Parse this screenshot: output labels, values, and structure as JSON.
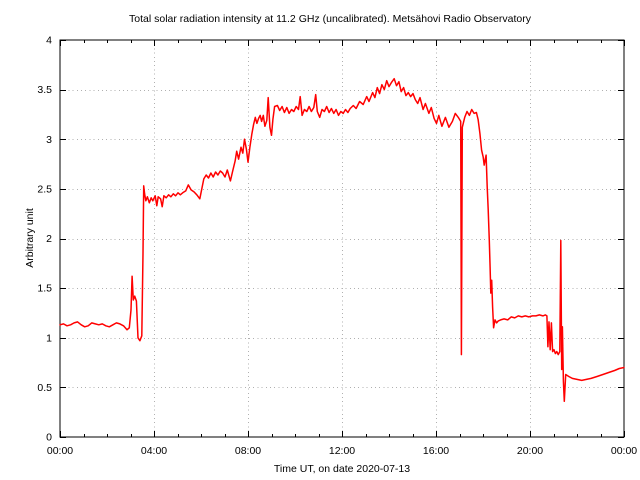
{
  "chart_data": {
    "type": "line",
    "title": "Total solar radiation intensity at 11.2 GHz (uncalibrated). Metsähovi Radio Observatory",
    "xlabel": "Time UT, on date 2020-07-13",
    "ylabel": "Arbitrary unit",
    "xlim": [
      0,
      24
    ],
    "ylim": [
      0,
      4
    ],
    "grid": true,
    "legend_position": "none",
    "frame_color": "#000000",
    "grid_color": "#b0b0b0",
    "x_ticks": [
      {
        "t": 0,
        "label": "00:00"
      },
      {
        "t": 4,
        "label": "04:00"
      },
      {
        "t": 8,
        "label": "08:00"
      },
      {
        "t": 12,
        "label": "12:00"
      },
      {
        "t": 16,
        "label": "16:00"
      },
      {
        "t": 20,
        "label": "20:00"
      },
      {
        "t": 24,
        "label": "00:00"
      }
    ],
    "minor_x_tick_every_hours": 1,
    "y_ticks": [
      {
        "v": 0,
        "label": "0"
      },
      {
        "v": 0.5,
        "label": "0.5"
      },
      {
        "v": 1,
        "label": "1"
      },
      {
        "v": 1.5,
        "label": "1.5"
      },
      {
        "v": 2,
        "label": "2"
      },
      {
        "v": 2.5,
        "label": "2.5"
      },
      {
        "v": 3,
        "label": "3"
      },
      {
        "v": 3.5,
        "label": "3.5"
      },
      {
        "v": 4,
        "label": "4"
      }
    ],
    "series": [
      {
        "name": "total solar radiation intensity",
        "color": "#ff0000",
        "points": [
          [
            0.0,
            1.13
          ],
          [
            0.15,
            1.14
          ],
          [
            0.3,
            1.12
          ],
          [
            0.45,
            1.13
          ],
          [
            0.6,
            1.15
          ],
          [
            0.75,
            1.16
          ],
          [
            0.9,
            1.13
          ],
          [
            1.05,
            1.11
          ],
          [
            1.2,
            1.12
          ],
          [
            1.35,
            1.15
          ],
          [
            1.5,
            1.14
          ],
          [
            1.65,
            1.13
          ],
          [
            1.8,
            1.14
          ],
          [
            1.95,
            1.12
          ],
          [
            2.1,
            1.11
          ],
          [
            2.25,
            1.13
          ],
          [
            2.4,
            1.15
          ],
          [
            2.55,
            1.14
          ],
          [
            2.7,
            1.12
          ],
          [
            2.85,
            1.08
          ],
          [
            2.95,
            1.1
          ],
          [
            3.02,
            1.28
          ],
          [
            3.07,
            1.62
          ],
          [
            3.12,
            1.38
          ],
          [
            3.18,
            1.42
          ],
          [
            3.25,
            1.37
          ],
          [
            3.32,
            1.0
          ],
          [
            3.4,
            0.97
          ],
          [
            3.48,
            1.02
          ],
          [
            3.53,
            1.85
          ],
          [
            3.56,
            2.53
          ],
          [
            3.6,
            2.45
          ],
          [
            3.65,
            2.38
          ],
          [
            3.72,
            2.42
          ],
          [
            3.8,
            2.36
          ],
          [
            3.88,
            2.41
          ],
          [
            3.95,
            2.38
          ],
          [
            4.05,
            2.43
          ],
          [
            4.12,
            2.33
          ],
          [
            4.18,
            2.42
          ],
          [
            4.28,
            2.4
          ],
          [
            4.35,
            2.32
          ],
          [
            4.42,
            2.43
          ],
          [
            4.52,
            2.41
          ],
          [
            4.62,
            2.44
          ],
          [
            4.72,
            2.42
          ],
          [
            4.82,
            2.45
          ],
          [
            4.92,
            2.43
          ],
          [
            5.02,
            2.46
          ],
          [
            5.12,
            2.44
          ],
          [
            5.22,
            2.46
          ],
          [
            5.35,
            2.48
          ],
          [
            5.46,
            2.54
          ],
          [
            5.58,
            2.49
          ],
          [
            5.7,
            2.47
          ],
          [
            5.82,
            2.44
          ],
          [
            5.95,
            2.4
          ],
          [
            6.05,
            2.52
          ],
          [
            6.12,
            2.6
          ],
          [
            6.22,
            2.64
          ],
          [
            6.32,
            2.61
          ],
          [
            6.42,
            2.66
          ],
          [
            6.52,
            2.62
          ],
          [
            6.62,
            2.67
          ],
          [
            6.72,
            2.64
          ],
          [
            6.82,
            2.68
          ],
          [
            6.92,
            2.66
          ],
          [
            7.02,
            2.62
          ],
          [
            7.12,
            2.69
          ],
          [
            7.25,
            2.58
          ],
          [
            7.35,
            2.68
          ],
          [
            7.45,
            2.78
          ],
          [
            7.52,
            2.88
          ],
          [
            7.6,
            2.8
          ],
          [
            7.7,
            2.92
          ],
          [
            7.78,
            2.86
          ],
          [
            7.85,
            3.0
          ],
          [
            7.93,
            2.9
          ],
          [
            8.0,
            2.77
          ],
          [
            8.08,
            2.92
          ],
          [
            8.16,
            3.05
          ],
          [
            8.24,
            3.15
          ],
          [
            8.31,
            3.22
          ],
          [
            8.38,
            3.16
          ],
          [
            8.45,
            3.21
          ],
          [
            8.52,
            3.24
          ],
          [
            8.58,
            3.18
          ],
          [
            8.65,
            3.24
          ],
          [
            8.72,
            3.13
          ],
          [
            8.8,
            3.19
          ],
          [
            8.86,
            3.42
          ],
          [
            8.93,
            3.12
          ],
          [
            9.0,
            3.04
          ],
          [
            9.06,
            3.2
          ],
          [
            9.13,
            3.33
          ],
          [
            9.25,
            3.34
          ],
          [
            9.35,
            3.29
          ],
          [
            9.45,
            3.33
          ],
          [
            9.55,
            3.27
          ],
          [
            9.65,
            3.32
          ],
          [
            9.75,
            3.26
          ],
          [
            9.85,
            3.3
          ],
          [
            9.95,
            3.28
          ],
          [
            10.05,
            3.33
          ],
          [
            10.15,
            3.3
          ],
          [
            10.22,
            3.43
          ],
          [
            10.3,
            3.24
          ],
          [
            10.4,
            3.3
          ],
          [
            10.5,
            3.28
          ],
          [
            10.6,
            3.33
          ],
          [
            10.7,
            3.28
          ],
          [
            10.8,
            3.32
          ],
          [
            10.88,
            3.45
          ],
          [
            10.95,
            3.28
          ],
          [
            11.05,
            3.22
          ],
          [
            11.15,
            3.3
          ],
          [
            11.25,
            3.28
          ],
          [
            11.35,
            3.33
          ],
          [
            11.45,
            3.27
          ],
          [
            11.55,
            3.31
          ],
          [
            11.65,
            3.26
          ],
          [
            11.75,
            3.3
          ],
          [
            11.85,
            3.24
          ],
          [
            11.95,
            3.28
          ],
          [
            12.05,
            3.26
          ],
          [
            12.15,
            3.3
          ],
          [
            12.25,
            3.27
          ],
          [
            12.35,
            3.31
          ],
          [
            12.48,
            3.34
          ],
          [
            12.6,
            3.31
          ],
          [
            12.75,
            3.38
          ],
          [
            12.9,
            3.35
          ],
          [
            13.05,
            3.43
          ],
          [
            13.15,
            3.38
          ],
          [
            13.3,
            3.47
          ],
          [
            13.4,
            3.42
          ],
          [
            13.5,
            3.52
          ],
          [
            13.6,
            3.46
          ],
          [
            13.7,
            3.55
          ],
          [
            13.8,
            3.5
          ],
          [
            13.9,
            3.59
          ],
          [
            14.0,
            3.53
          ],
          [
            14.1,
            3.57
          ],
          [
            14.22,
            3.61
          ],
          [
            14.32,
            3.54
          ],
          [
            14.42,
            3.58
          ],
          [
            14.52,
            3.48
          ],
          [
            14.62,
            3.52
          ],
          [
            14.72,
            3.44
          ],
          [
            14.82,
            3.47
          ],
          [
            14.92,
            3.43
          ],
          [
            15.02,
            3.46
          ],
          [
            15.12,
            3.4
          ],
          [
            15.22,
            3.36
          ],
          [
            15.32,
            3.42
          ],
          [
            15.45,
            3.3
          ],
          [
            15.55,
            3.36
          ],
          [
            15.7,
            3.26
          ],
          [
            15.8,
            3.32
          ],
          [
            15.92,
            3.21
          ],
          [
            16.02,
            3.16
          ],
          [
            16.12,
            3.24
          ],
          [
            16.25,
            3.13
          ],
          [
            16.4,
            3.22
          ],
          [
            16.55,
            3.12
          ],
          [
            16.7,
            3.18
          ],
          [
            16.82,
            3.26
          ],
          [
            16.95,
            3.22
          ],
          [
            17.05,
            3.18
          ],
          [
            17.08,
            0.83
          ],
          [
            17.12,
            3.12
          ],
          [
            17.22,
            3.22
          ],
          [
            17.32,
            3.28
          ],
          [
            17.42,
            3.24
          ],
          [
            17.52,
            3.3
          ],
          [
            17.62,
            3.26
          ],
          [
            17.72,
            3.27
          ],
          [
            17.79,
            3.2
          ],
          [
            17.87,
            3.06
          ],
          [
            17.94,
            2.89
          ],
          [
            18.01,
            2.82
          ],
          [
            18.05,
            2.74
          ],
          [
            18.13,
            2.84
          ],
          [
            18.18,
            2.52
          ],
          [
            18.22,
            2.29
          ],
          [
            18.27,
            1.98
          ],
          [
            18.3,
            1.71
          ],
          [
            18.33,
            1.45
          ],
          [
            18.37,
            1.58
          ],
          [
            18.41,
            1.31
          ],
          [
            18.45,
            1.1
          ],
          [
            18.51,
            1.18
          ],
          [
            18.58,
            1.15
          ],
          [
            18.65,
            1.17
          ],
          [
            18.75,
            1.18
          ],
          [
            18.9,
            1.19
          ],
          [
            19.05,
            1.18
          ],
          [
            19.2,
            1.21
          ],
          [
            19.35,
            1.2
          ],
          [
            19.5,
            1.22
          ],
          [
            19.65,
            1.21
          ],
          [
            19.8,
            1.22
          ],
          [
            19.95,
            1.21
          ],
          [
            20.1,
            1.22
          ],
          [
            20.25,
            1.22
          ],
          [
            20.4,
            1.23
          ],
          [
            20.55,
            1.22
          ],
          [
            20.65,
            1.23
          ],
          [
            20.72,
            1.22
          ],
          [
            20.76,
            0.91
          ],
          [
            20.81,
            1.16
          ],
          [
            20.86,
            0.88
          ],
          [
            20.91,
            1.15
          ],
          [
            20.96,
            0.86
          ],
          [
            21.02,
            0.88
          ],
          [
            21.08,
            0.84
          ],
          [
            21.14,
            0.86
          ],
          [
            21.2,
            0.83
          ],
          [
            21.27,
            0.86
          ],
          [
            21.31,
            1.98
          ],
          [
            21.35,
            0.68
          ],
          [
            21.38,
            1.11
          ],
          [
            21.42,
            0.56
          ],
          [
            21.46,
            0.36
          ],
          [
            21.52,
            0.63
          ],
          [
            21.65,
            0.61
          ],
          [
            21.8,
            0.59
          ],
          [
            22.0,
            0.58
          ],
          [
            22.2,
            0.57
          ],
          [
            22.4,
            0.58
          ],
          [
            22.6,
            0.59
          ],
          [
            22.85,
            0.61
          ],
          [
            23.1,
            0.63
          ],
          [
            23.35,
            0.65
          ],
          [
            23.6,
            0.67
          ],
          [
            23.8,
            0.69
          ],
          [
            24.0,
            0.7
          ]
        ]
      }
    ]
  }
}
